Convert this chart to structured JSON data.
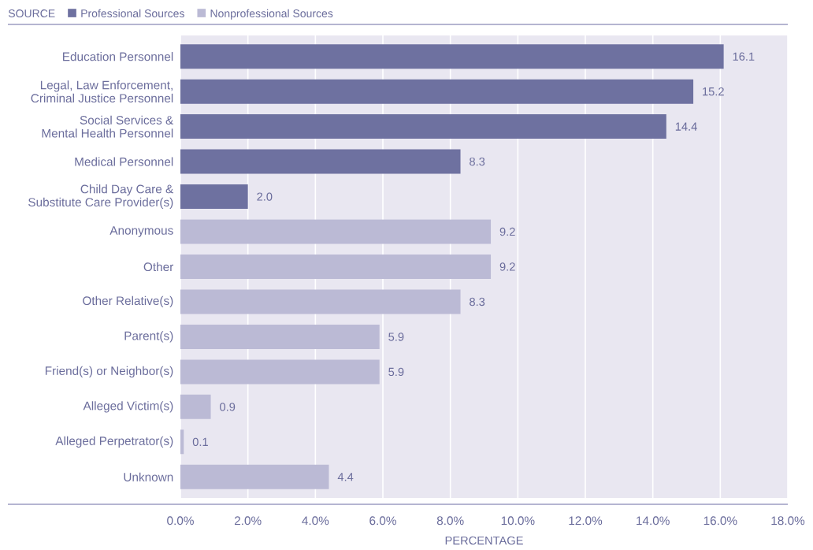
{
  "chart_data": {
    "type": "bar",
    "orientation": "horizontal",
    "xlabel": "PERCENTAGE",
    "legend_title": "SOURCE",
    "legend": "top left",
    "categories": [
      "Education Personnel",
      "Legal, Law Enforcement,\nCriminal Justice Personnel",
      "Social Services &\nMental Health Personnel",
      "Medical Personnel",
      "Child Day Care &\nSubstitute Care Provider(s)",
      "Anonymous",
      "Other",
      "Other Relative(s)",
      "Parent(s)",
      "Friend(s) or Neighbor(s)",
      "Alleged Victim(s)",
      "Alleged Perpetrator(s)",
      "Unknown"
    ],
    "series": [
      {
        "name": "Professional Sources",
        "color": "#6e71a0",
        "values": [
          16.1,
          15.2,
          14.4,
          8.3,
          2.0,
          null,
          null,
          null,
          null,
          null,
          null,
          null,
          null
        ],
        "value_labels": [
          "16.1",
          "15.2",
          "14.4",
          "8.3",
          "2.0",
          null,
          null,
          null,
          null,
          null,
          null,
          null,
          null
        ]
      },
      {
        "name": "Nonprofessional Sources",
        "color": "#bbbad5",
        "values": [
          null,
          null,
          null,
          null,
          null,
          9.2,
          9.2,
          8.3,
          5.9,
          5.9,
          0.9,
          0.1,
          4.4
        ],
        "value_labels": [
          null,
          null,
          null,
          null,
          null,
          "9.2",
          "9.2",
          "8.3",
          "5.9",
          "5.9",
          "0.9",
          "0.1",
          "4.4"
        ]
      }
    ],
    "xlim": [
      0,
      18
    ],
    "xticks": [
      {
        "value": 0,
        "label": "0.0%"
      },
      {
        "value": 2,
        "label": "2.0%"
      },
      {
        "value": 4,
        "label": "4.0%"
      },
      {
        "value": 6,
        "label": "6.0%"
      },
      {
        "value": 8,
        "label": "8.0%"
      },
      {
        "value": 10,
        "label": "10.0%"
      },
      {
        "value": 12,
        "label": "12.0%"
      },
      {
        "value": 14,
        "label": "14.0%"
      },
      {
        "value": 16,
        "label": "16.0%"
      },
      {
        "value": 18,
        "label": "18.0%"
      }
    ],
    "grid": "x"
  }
}
